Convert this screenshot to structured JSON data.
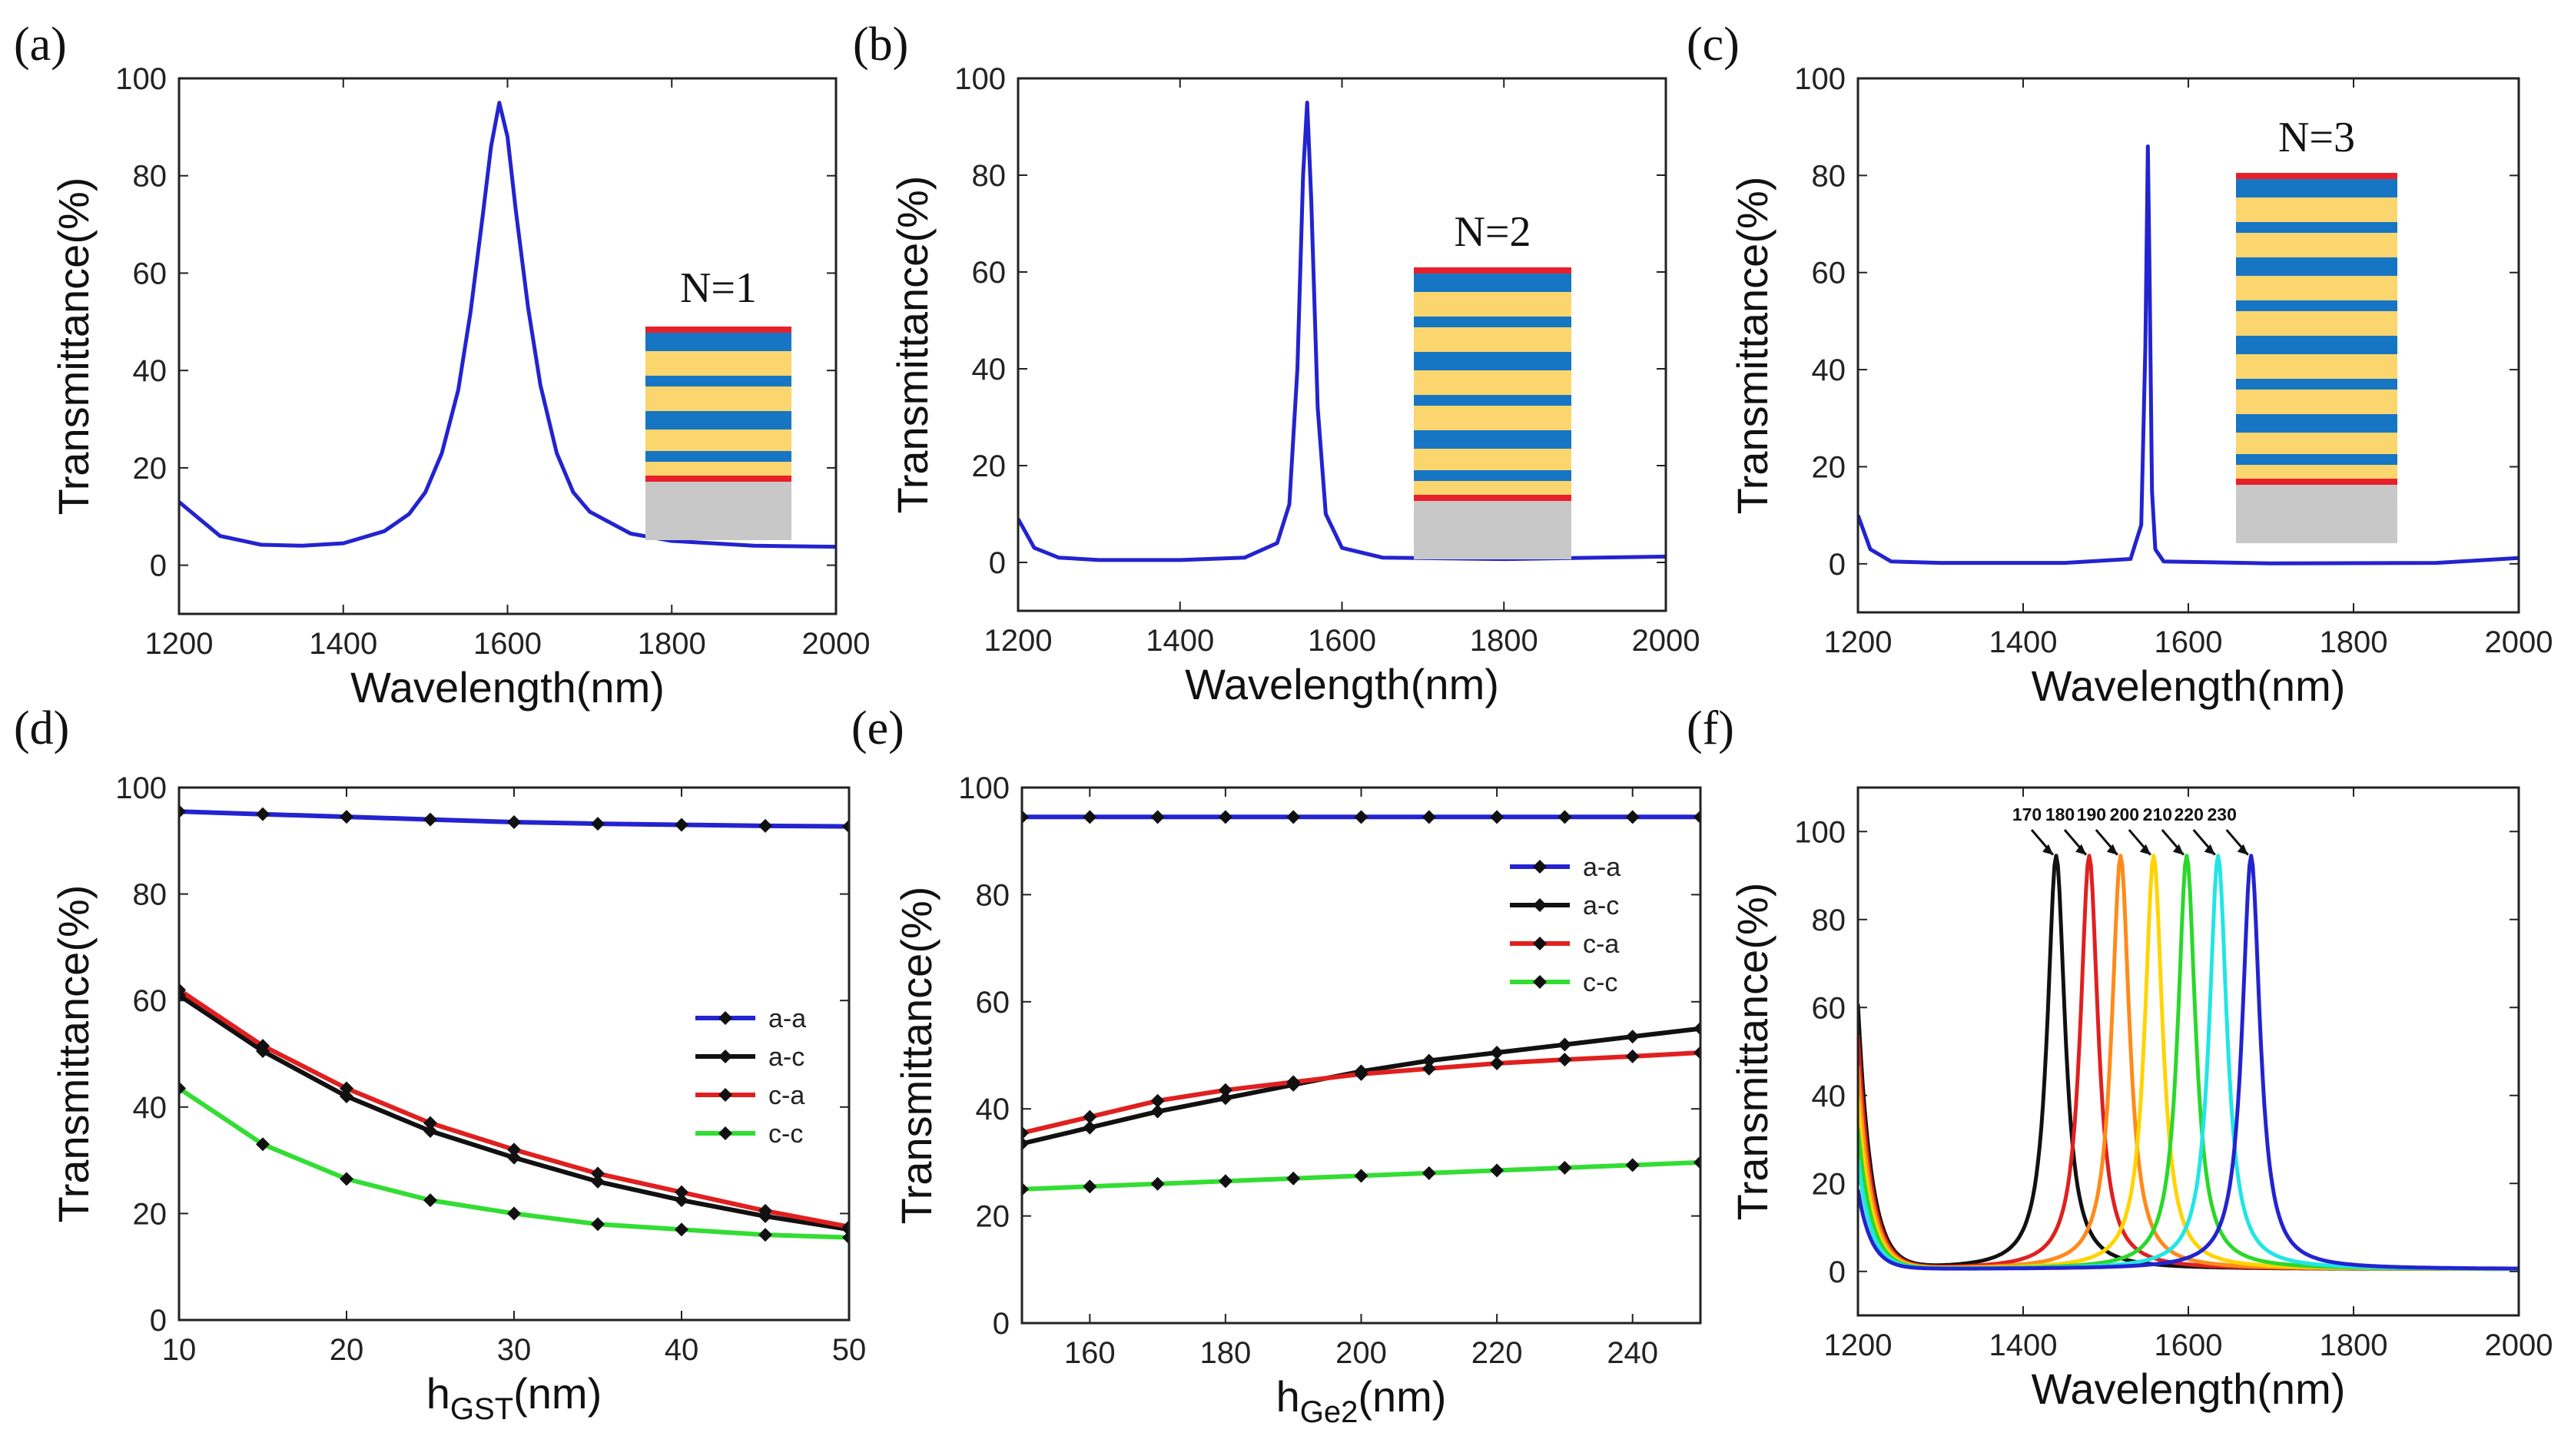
{
  "chart_data": [
    {
      "id": "a",
      "panel_label": "(a)",
      "type": "line",
      "xlabel": "Wavelength(nm)",
      "ylabel": "Transmittance(%)",
      "xlim": [
        1200,
        2000
      ],
      "ylim": [
        -10,
        100
      ],
      "xticks": [
        1200,
        1400,
        1600,
        1800,
        2000
      ],
      "yticks": [
        0,
        20,
        40,
        60,
        80,
        100
      ],
      "inset": {
        "label": "N=1",
        "periods": 1
      },
      "series": [
        {
          "color": "#2323d0",
          "x": [
            1200,
            1250,
            1300,
            1350,
            1400,
            1450,
            1480,
            1500,
            1520,
            1540,
            1555,
            1570,
            1580,
            1590,
            1600,
            1610,
            1625,
            1640,
            1660,
            1680,
            1700,
            1750,
            1800,
            1900,
            2000
          ],
          "y": [
            13,
            6,
            4.2,
            4,
            4.5,
            7,
            10.5,
            15,
            23,
            36,
            52,
            72,
            86,
            95,
            88,
            73,
            53,
            37,
            23,
            15,
            11,
            6.5,
            5,
            4,
            3.8
          ]
        }
      ]
    },
    {
      "id": "b",
      "panel_label": "(b)",
      "type": "line",
      "xlabel": "Wavelength(nm)",
      "ylabel": "Transmittance(%)",
      "xlim": [
        1200,
        2000
      ],
      "ylim": [
        -10,
        100
      ],
      "xticks": [
        1200,
        1400,
        1600,
        1800,
        2000
      ],
      "yticks": [
        0,
        20,
        40,
        60,
        80,
        100
      ],
      "inset": {
        "label": "N=2",
        "periods": 2
      },
      "series": [
        {
          "color": "#2323d0",
          "x": [
            1200,
            1220,
            1250,
            1300,
            1400,
            1480,
            1520,
            1535,
            1545,
            1552,
            1557,
            1562,
            1570,
            1580,
            1600,
            1650,
            1800,
            2000
          ],
          "y": [
            9,
            3,
            1,
            0.5,
            0.5,
            1,
            4,
            12,
            40,
            80,
            95,
            75,
            32,
            10,
            3,
            1,
            0.7,
            1.2
          ]
        }
      ]
    },
    {
      "id": "c",
      "panel_label": "(c)",
      "type": "line",
      "xlabel": "Wavelength(nm)",
      "ylabel": "Transmittance(%)",
      "xlim": [
        1200,
        2000
      ],
      "ylim": [
        -10,
        100
      ],
      "xticks": [
        1200,
        1400,
        1600,
        1800,
        2000
      ],
      "yticks": [
        0,
        20,
        40,
        60,
        80,
        100
      ],
      "inset": {
        "label": "N=3",
        "periods": 3
      },
      "series": [
        {
          "color": "#2323d0",
          "x": [
            1200,
            1215,
            1240,
            1300,
            1450,
            1530,
            1543,
            1548,
            1551,
            1553,
            1556,
            1560,
            1570,
            1700,
            1900,
            2000
          ],
          "y": [
            10,
            3,
            0.5,
            0.2,
            0.2,
            1,
            8,
            45,
            86,
            60,
            15,
            3,
            0.5,
            0.1,
            0.2,
            1.2
          ]
        }
      ]
    },
    {
      "id": "d",
      "panel_label": "(d)",
      "type": "line",
      "xlabel": "h_GST(nm)",
      "ylabel": "Transmittance(%)",
      "xlim": [
        10,
        50
      ],
      "ylim": [
        0,
        100
      ],
      "xticks": [
        10,
        20,
        30,
        40,
        50
      ],
      "yticks": [
        0,
        20,
        40,
        60,
        80,
        100
      ],
      "x": [
        10,
        15,
        20,
        25,
        30,
        35,
        40,
        45,
        50
      ],
      "series": [
        {
          "name": "a-a",
          "color": "#2323d0",
          "values": [
            95.5,
            95,
            94.5,
            94,
            93.5,
            93.2,
            93,
            92.8,
            92.7
          ]
        },
        {
          "name": "a-c",
          "color": "#111111",
          "values": [
            61,
            50.5,
            42,
            35.5,
            30.5,
            26,
            22.5,
            19.5,
            17
          ]
        },
        {
          "name": "c-a",
          "color": "#e02020",
          "values": [
            62,
            51.5,
            43.5,
            37,
            32,
            27.5,
            24,
            20.5,
            17.5
          ]
        },
        {
          "name": "c-c",
          "color": "#33dd33",
          "values": [
            43.5,
            33,
            26.5,
            22.5,
            20,
            18,
            17,
            16,
            15.5
          ]
        }
      ],
      "legend_position": "center-right"
    },
    {
      "id": "e",
      "panel_label": "(e)",
      "type": "line",
      "xlabel": "h_Ge2(nm)",
      "ylabel": "Transmittance(%)",
      "xlim": [
        150,
        250
      ],
      "ylim": [
        0,
        100
      ],
      "xticks": [
        160,
        180,
        200,
        220,
        240
      ],
      "yticks": [
        0,
        20,
        40,
        60,
        80,
        100
      ],
      "x": [
        150,
        160,
        170,
        180,
        190,
        200,
        210,
        220,
        230,
        240,
        250
      ],
      "series": [
        {
          "name": "a-a",
          "color": "#2323d0",
          "values": [
            94.5,
            94.5,
            94.5,
            94.5,
            94.5,
            94.5,
            94.5,
            94.5,
            94.5,
            94.5,
            94.5
          ]
        },
        {
          "name": "a-c",
          "color": "#111111",
          "values": [
            33.5,
            36.5,
            39.5,
            42,
            44.5,
            47,
            49,
            50.5,
            52,
            53.5,
            55
          ]
        },
        {
          "name": "c-a",
          "color": "#e02020",
          "values": [
            35.5,
            38.5,
            41.5,
            43.5,
            45,
            46.5,
            47.5,
            48.5,
            49.2,
            49.8,
            50.5
          ]
        },
        {
          "name": "c-c",
          "color": "#33dd33",
          "values": [
            25,
            25.5,
            26,
            26.5,
            27,
            27.5,
            28,
            28.5,
            29,
            29.5,
            30
          ]
        }
      ],
      "legend_position": "top-right"
    },
    {
      "id": "f",
      "panel_label": "(f)",
      "type": "line",
      "xlabel": "Wavelength(nm)",
      "ylabel": "Transmittance(%)",
      "xlim": [
        1200,
        2000
      ],
      "ylim": [
        -10,
        110
      ],
      "xticks": [
        1200,
        1400,
        1600,
        1800,
        2000
      ],
      "yticks": [
        0,
        20,
        40,
        60,
        80,
        100
      ],
      "peak_height": 94,
      "series": [
        {
          "name": "170",
          "color": "#111111",
          "peak": 1440
        },
        {
          "name": "180",
          "color": "#e02020",
          "peak": 1480
        },
        {
          "name": "190",
          "color": "#ff8a1a",
          "peak": 1518
        },
        {
          "name": "200",
          "color": "#ffd400",
          "peak": 1558
        },
        {
          "name": "210",
          "color": "#2ad82a",
          "peak": 1598
        },
        {
          "name": "220",
          "color": "#22e5e5",
          "peak": 1636
        },
        {
          "name": "230",
          "color": "#2323d0",
          "peak": 1676
        }
      ]
    }
  ],
  "inset_colors": {
    "cap": "#e8202a",
    "blue": "#1776c4",
    "yellow": "#fbd56d",
    "substrate": "#c8c8c8"
  }
}
